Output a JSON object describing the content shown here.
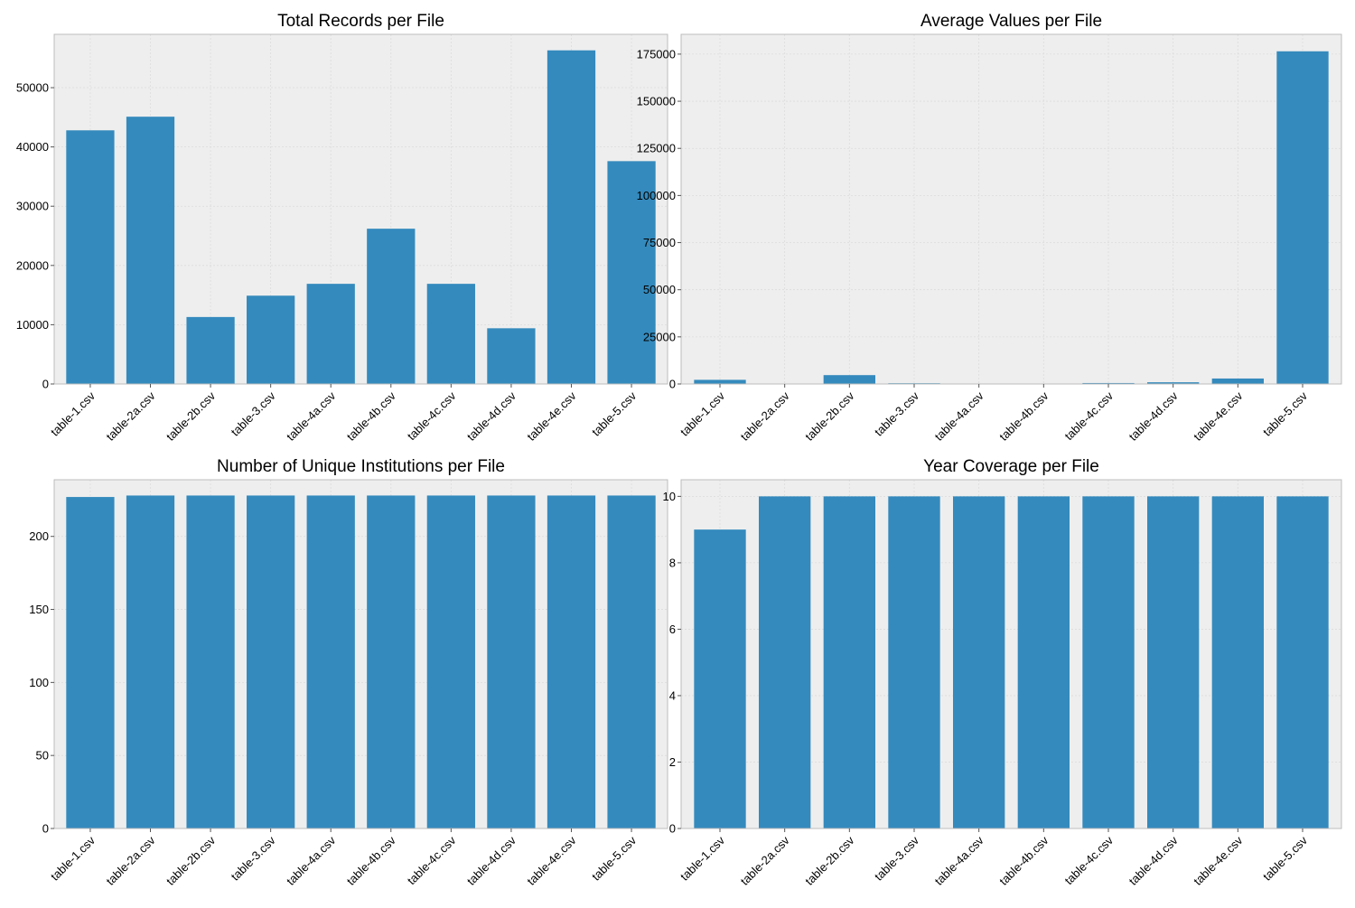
{
  "chart_data": [
    {
      "type": "bar",
      "title": "Total Records per File",
      "categories": [
        "table-1.csv",
        "table-2a.csv",
        "table-2b.csv",
        "table-3.csv",
        "table-4a.csv",
        "table-4b.csv",
        "table-4c.csv",
        "table-4d.csv",
        "table-4e.csv",
        "table-5.csv"
      ],
      "values": [
        42800,
        45100,
        11300,
        14900,
        16900,
        26200,
        16900,
        9400,
        56300,
        37600
      ],
      "ylim": [
        0,
        59000
      ],
      "yticks": [
        0,
        10000,
        20000,
        30000,
        40000,
        50000
      ],
      "grid": true,
      "color": "#348abd"
    },
    {
      "type": "bar",
      "title": "Average Values per File",
      "categories": [
        "table-1.csv",
        "table-2a.csv",
        "table-2b.csv",
        "table-3.csv",
        "table-4a.csv",
        "table-4b.csv",
        "table-4c.csv",
        "table-4d.csv",
        "table-4e.csv",
        "table-5.csv"
      ],
      "values": [
        2200,
        20,
        4700,
        400,
        30,
        30,
        500,
        900,
        2900,
        176500
      ],
      "ylim": [
        0,
        185500
      ],
      "yticks": [
        0,
        25000,
        50000,
        75000,
        100000,
        125000,
        150000,
        175000
      ],
      "grid": true,
      "color": "#348abd"
    },
    {
      "type": "bar",
      "title": "Number of Unique Institutions per File",
      "categories": [
        "table-1.csv",
        "table-2a.csv",
        "table-2b.csv",
        "table-3.csv",
        "table-4a.csv",
        "table-4b.csv",
        "table-4c.csv",
        "table-4d.csv",
        "table-4e.csv",
        "table-5.csv"
      ],
      "values": [
        227,
        228,
        228,
        228,
        228,
        228,
        228,
        228,
        228,
        228
      ],
      "ylim": [
        0,
        238.8
      ],
      "yticks": [
        0,
        50,
        100,
        150,
        200
      ],
      "grid": true,
      "color": "#348abd"
    },
    {
      "type": "bar",
      "title": "Year Coverage per File",
      "categories": [
        "table-1.csv",
        "table-2a.csv",
        "table-2b.csv",
        "table-3.csv",
        "table-4a.csv",
        "table-4b.csv",
        "table-4c.csv",
        "table-4d.csv",
        "table-4e.csv",
        "table-5.csv"
      ],
      "values": [
        9,
        10,
        10,
        10,
        10,
        10,
        10,
        10,
        10,
        10
      ],
      "ylim": [
        0,
        10.5
      ],
      "yticks": [
        0,
        2,
        4,
        6,
        8,
        10
      ],
      "grid": true,
      "color": "#348abd"
    }
  ],
  "style": {
    "plot_background": "#eeeeee",
    "frame_color": "#bcbcbc",
    "grid_color": "#dcdcdc",
    "text_color": "#000000"
  }
}
